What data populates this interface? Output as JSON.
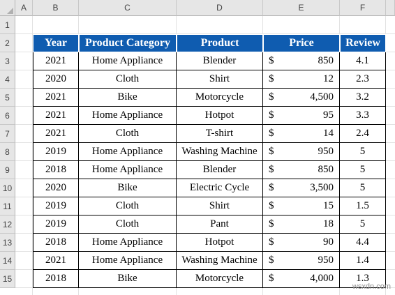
{
  "columns": [
    "A",
    "B",
    "C",
    "D",
    "E",
    "F"
  ],
  "rows": [
    "1",
    "2",
    "3",
    "4",
    "5",
    "6",
    "7",
    "8",
    "9",
    "10",
    "11",
    "12",
    "13",
    "14",
    "15"
  ],
  "table": {
    "headers": [
      "Year",
      "Product Category",
      "Product",
      "Price",
      "Review"
    ],
    "currency": "$",
    "records": [
      {
        "year": "2021",
        "category": "Home Appliance",
        "product": "Blender",
        "price": "850",
        "review": "4.1"
      },
      {
        "year": "2020",
        "category": "Cloth",
        "product": "Shirt",
        "price": "12",
        "review": "2.3"
      },
      {
        "year": "2021",
        "category": "Bike",
        "product": "Motorcycle",
        "price": "4,500",
        "review": "3.2"
      },
      {
        "year": "2021",
        "category": "Home Appliance",
        "product": "Hotpot",
        "price": "95",
        "review": "3.3"
      },
      {
        "year": "2021",
        "category": "Cloth",
        "product": "T-shirt",
        "price": "14",
        "review": "2.4"
      },
      {
        "year": "2019",
        "category": "Home Appliance",
        "product": "Washing Machine",
        "price": "950",
        "review": "5"
      },
      {
        "year": "2018",
        "category": "Home Appliance",
        "product": "Blender",
        "price": "850",
        "review": "5"
      },
      {
        "year": "2020",
        "category": "Bike",
        "product": "Electric Cycle",
        "price": "3,500",
        "review": "5"
      },
      {
        "year": "2019",
        "category": "Cloth",
        "product": "Shirt",
        "price": "15",
        "review": "1.5"
      },
      {
        "year": "2019",
        "category": "Cloth",
        "product": "Pant",
        "price": "18",
        "review": "5"
      },
      {
        "year": "2018",
        "category": "Home Appliance",
        "product": "Hotpot",
        "price": "90",
        "review": "4.4"
      },
      {
        "year": "2021",
        "category": "Home Appliance",
        "product": "Washing Machine",
        "price": "950",
        "review": "1.4"
      },
      {
        "year": "2018",
        "category": "Bike",
        "product": "Motorcycle",
        "price": "4,000",
        "review": "1.3"
      }
    ]
  },
  "watermark": "wsxdn.com",
  "colors": {
    "header_fill": "#0f5cb0",
    "header_text": "#ffffff"
  }
}
